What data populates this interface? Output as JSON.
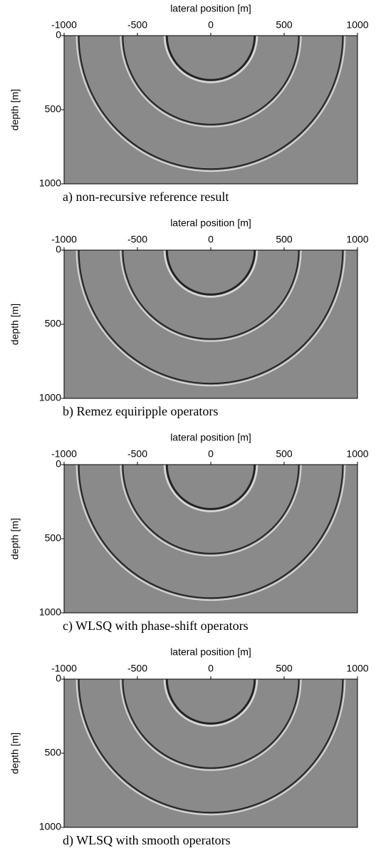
{
  "chart_data": [
    {
      "type": "image",
      "xlabel": "lateral position [m]",
      "ylabel": "depth [m]",
      "caption": "a) non-recursive reference result",
      "xlim": [
        -1000,
        1000
      ],
      "ylim": [
        1000,
        0
      ],
      "xticks": [
        -1000,
        -500,
        0,
        500,
        1000
      ],
      "yticks": [
        0,
        500,
        1000
      ],
      "wavefront_radii": [
        300,
        600,
        900
      ]
    },
    {
      "type": "image",
      "xlabel": "lateral position [m]",
      "ylabel": "depth [m]",
      "caption": "b) Remez equiripple operators",
      "xlim": [
        -1000,
        1000
      ],
      "ylim": [
        1000,
        0
      ],
      "xticks": [
        -1000,
        -500,
        0,
        500,
        1000
      ],
      "yticks": [
        0,
        500,
        1000
      ],
      "wavefront_radii": [
        300,
        600,
        900
      ]
    },
    {
      "type": "image",
      "xlabel": "lateral position [m]",
      "ylabel": "depth [m]",
      "caption": "c) WLSQ with phase-shift operators",
      "xlim": [
        -1000,
        1000
      ],
      "ylim": [
        1000,
        0
      ],
      "xticks": [
        -1000,
        -500,
        0,
        500,
        1000
      ],
      "yticks": [
        0,
        500,
        1000
      ],
      "wavefront_radii": [
        300,
        600,
        900
      ]
    },
    {
      "type": "image",
      "xlabel": "lateral position [m]",
      "ylabel": "depth [m]",
      "caption": "d) WLSQ with smooth operators",
      "xlim": [
        -1000,
        1000
      ],
      "ylim": [
        1000,
        0
      ],
      "xticks": [
        -1000,
        -500,
        0,
        500,
        1000
      ],
      "yticks": [
        0,
        500,
        1000
      ],
      "wavefront_radii": [
        300,
        600,
        900
      ]
    }
  ]
}
